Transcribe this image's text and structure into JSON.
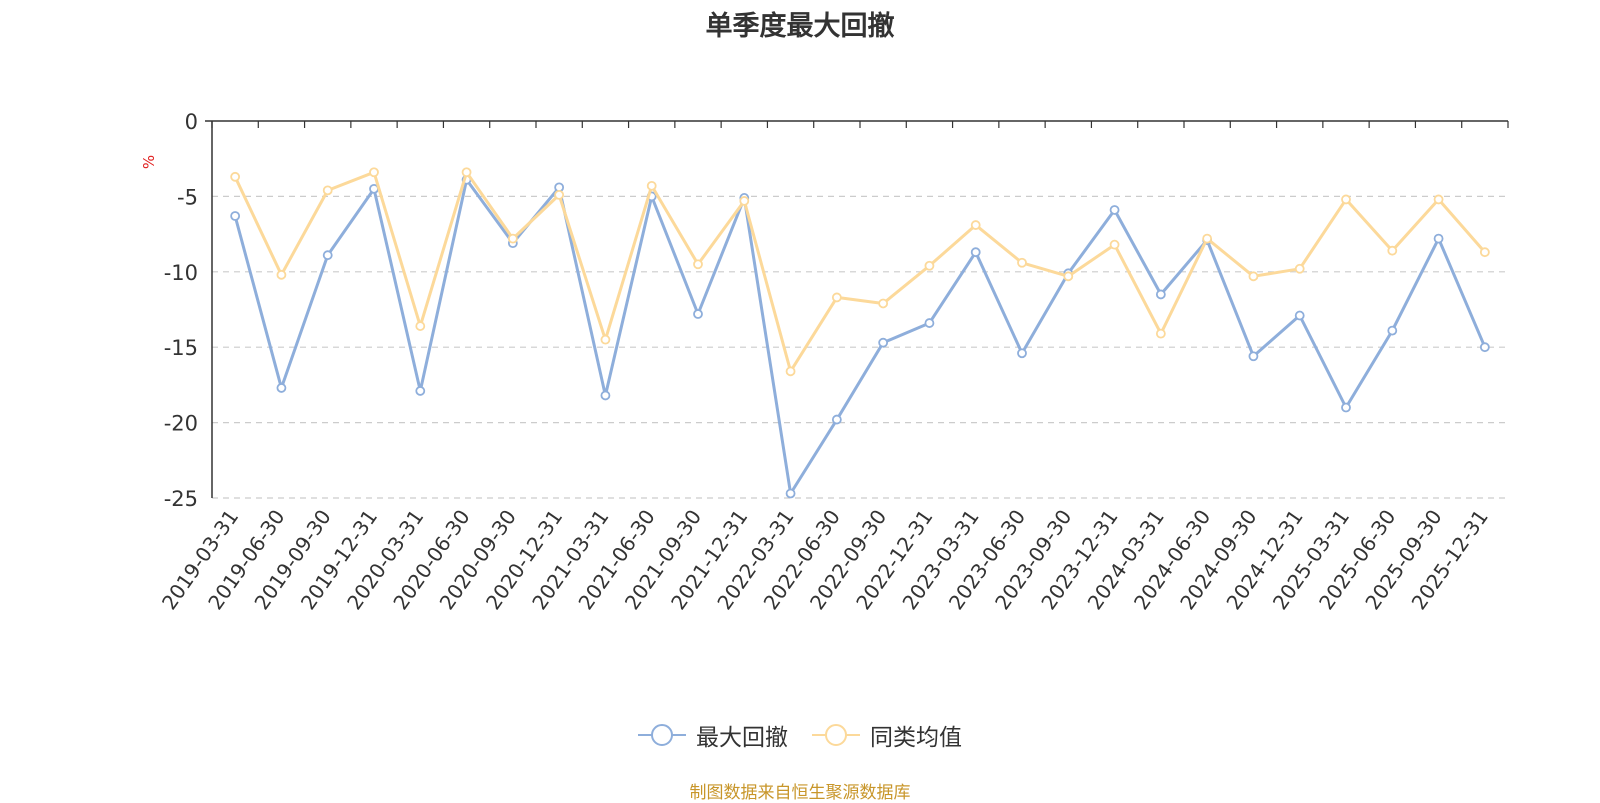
{
  "chart_data": {
    "type": "line",
    "title": "单季度最大回撤",
    "ylabel": "%",
    "xlabel": "",
    "ylim": [
      -25,
      0
    ],
    "yticks": [
      0,
      -5,
      -10,
      -15,
      -20,
      -25
    ],
    "grid": true,
    "legend_position": "bottom-center",
    "categories": [
      "2019-03-31",
      "2019-06-30",
      "2019-09-30",
      "2019-12-31",
      "2020-03-31",
      "2020-06-30",
      "2020-09-30",
      "2020-12-31",
      "2021-03-31",
      "2021-06-30",
      "2021-09-30",
      "2021-12-31",
      "2022-03-31",
      "2022-06-30",
      "2022-09-30",
      "2022-12-31",
      "2023-03-31",
      "2023-06-30",
      "2023-09-30",
      "2023-12-31",
      "2024-03-31",
      "2024-06-30",
      "2024-09-30",
      "2024-12-31",
      "2025-03-31",
      "2025-06-30",
      "2025-09-30",
      "2025-12-31"
    ],
    "series": [
      {
        "name": "最大回撤",
        "color": "#8eaedb",
        "values": [
          -6.3,
          -17.7,
          -8.9,
          -4.5,
          -17.9,
          -3.9,
          -8.1,
          -4.4,
          -18.2,
          -5.0,
          -12.8,
          -5.1,
          -24.7,
          -19.8,
          -14.7,
          -13.4,
          -8.7,
          -15.4,
          -10.1,
          -5.9,
          -11.5,
          -7.9,
          -15.6,
          -12.9,
          -19.0,
          -13.9,
          -7.8,
          -15.0
        ]
      },
      {
        "name": "同类均值",
        "color": "#fcd99a",
        "values": [
          -3.7,
          -10.2,
          -4.6,
          -3.4,
          -13.6,
          -3.4,
          -7.8,
          -4.9,
          -14.5,
          -4.3,
          -9.5,
          -5.3,
          -16.6,
          -11.7,
          -12.1,
          -9.6,
          -6.9,
          -9.4,
          -10.3,
          -8.2,
          -14.1,
          -7.8,
          -10.3,
          -9.8,
          -5.2,
          -8.6,
          -5.2,
          -8.7
        ]
      }
    ]
  },
  "source_note": "制图数据来自恒生聚源数据库"
}
